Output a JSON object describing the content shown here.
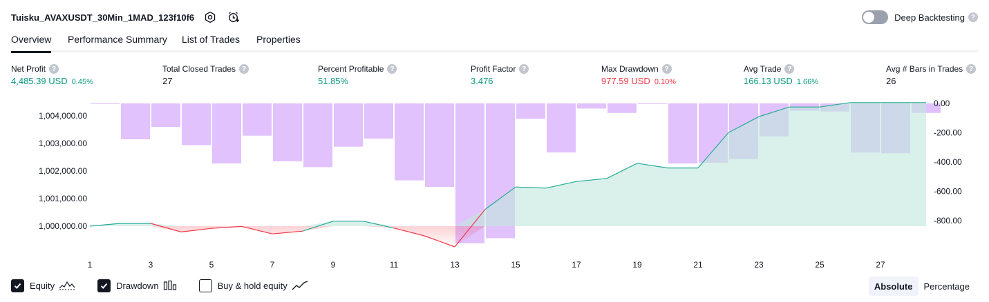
{
  "header": {
    "title": "Tuisku_AVAXUSDT_30Min_1MAD_123f10f6",
    "icons": [
      "settings-icon",
      "add-alert-icon"
    ]
  },
  "deep_backtesting": {
    "label": "Deep Backtesting",
    "enabled": false,
    "help": "?"
  },
  "tabs": [
    {
      "label": "Overview",
      "active": true
    },
    {
      "label": "Performance Summary",
      "active": false
    },
    {
      "label": "List of Trades",
      "active": false
    },
    {
      "label": "Properties",
      "active": false
    }
  ],
  "metrics": {
    "net_profit": {
      "label": "Net Profit",
      "value": "4,485.39 USD",
      "pct": "0.45%"
    },
    "total_closed_trades": {
      "label": "Total Closed Trades",
      "value": "27"
    },
    "percent_profitable": {
      "label": "Percent Profitable",
      "value": "51.85%"
    },
    "profit_factor": {
      "label": "Profit Factor",
      "value": "3.476"
    },
    "max_drawdown": {
      "label": "Max Drawdown",
      "value": "977.59 USD",
      "pct": "0.10%"
    },
    "avg_trade": {
      "label": "Avg Trade",
      "value": "166.13 USD",
      "pct": "1.66%"
    },
    "avg_bars": {
      "label": "Avg # Bars in Trades",
      "value": "26"
    }
  },
  "colors": {
    "profit": "#089981",
    "loss": "#f23645",
    "drawdown_bar": "#e1c2fd",
    "equity_fill": "#dff3ee",
    "equity_line_up": "#22ab94",
    "equity_line_down": "#f23645"
  },
  "chart_data": {
    "type": "line",
    "x": [
      1,
      2,
      3,
      4,
      5,
      6,
      7,
      8,
      9,
      10,
      11,
      12,
      13,
      14,
      15,
      16,
      17,
      18,
      19,
      20,
      21,
      22,
      23,
      24,
      25,
      26,
      27,
      28
    ],
    "x_tick_labels": [
      "1",
      "3",
      "5",
      "7",
      "9",
      "11",
      "13",
      "15",
      "17",
      "19",
      "21",
      "23",
      "25",
      "27"
    ],
    "left_axis": {
      "tick_labels": [
        "1,004,000.00",
        "1,003,000.00",
        "1,002,000.00",
        "1,001,000.00",
        "1,000,000.00"
      ],
      "ticks": [
        1004000,
        1003000,
        1002000,
        1001000,
        1000000
      ],
      "range": [
        999250,
        1004480
      ]
    },
    "right_axis": {
      "tick_labels": [
        "0.00",
        "-200.00",
        "-400.00",
        "-600.00",
        "-800.00"
      ],
      "ticks": [
        0,
        -200,
        -400,
        -600,
        -800
      ],
      "range": [
        -990,
        0
      ]
    },
    "series": [
      {
        "name": "Equity",
        "axis": "left",
        "baseline": 1000000,
        "values": [
          1000000,
          1000100,
          1000100,
          999790,
          999920,
          999990,
          999720,
          999820,
          1000180,
          1000180,
          999930,
          999650,
          999250,
          1000610,
          1001420,
          1001380,
          1001620,
          1001730,
          1002280,
          1002110,
          1002110,
          1003390,
          1003970,
          1004320,
          1004320,
          1004480,
          1004480,
          1004480
        ]
      },
      {
        "name": "Drawdown",
        "axis": "right",
        "type": "bar",
        "values": [
          0,
          -245,
          -160,
          -285,
          -410,
          -220,
          -395,
          -435,
          -295,
          -240,
          -525,
          -570,
          -955,
          -920,
          -105,
          -335,
          -35,
          -65,
          0,
          -410,
          -405,
          -380,
          -225,
          -50,
          -55,
          -335,
          -340,
          -65
        ]
      }
    ]
  },
  "legend": [
    {
      "label": "Equity",
      "checked": true,
      "icon": "equity-line-icon"
    },
    {
      "label": "Drawdown",
      "checked": true,
      "icon": "drawdown-bars-icon"
    },
    {
      "label": "Buy & hold equity",
      "checked": false,
      "icon": "buy-hold-line-icon"
    }
  ],
  "modes": [
    {
      "label": "Absolute",
      "active": true
    },
    {
      "label": "Percentage",
      "active": false
    }
  ]
}
